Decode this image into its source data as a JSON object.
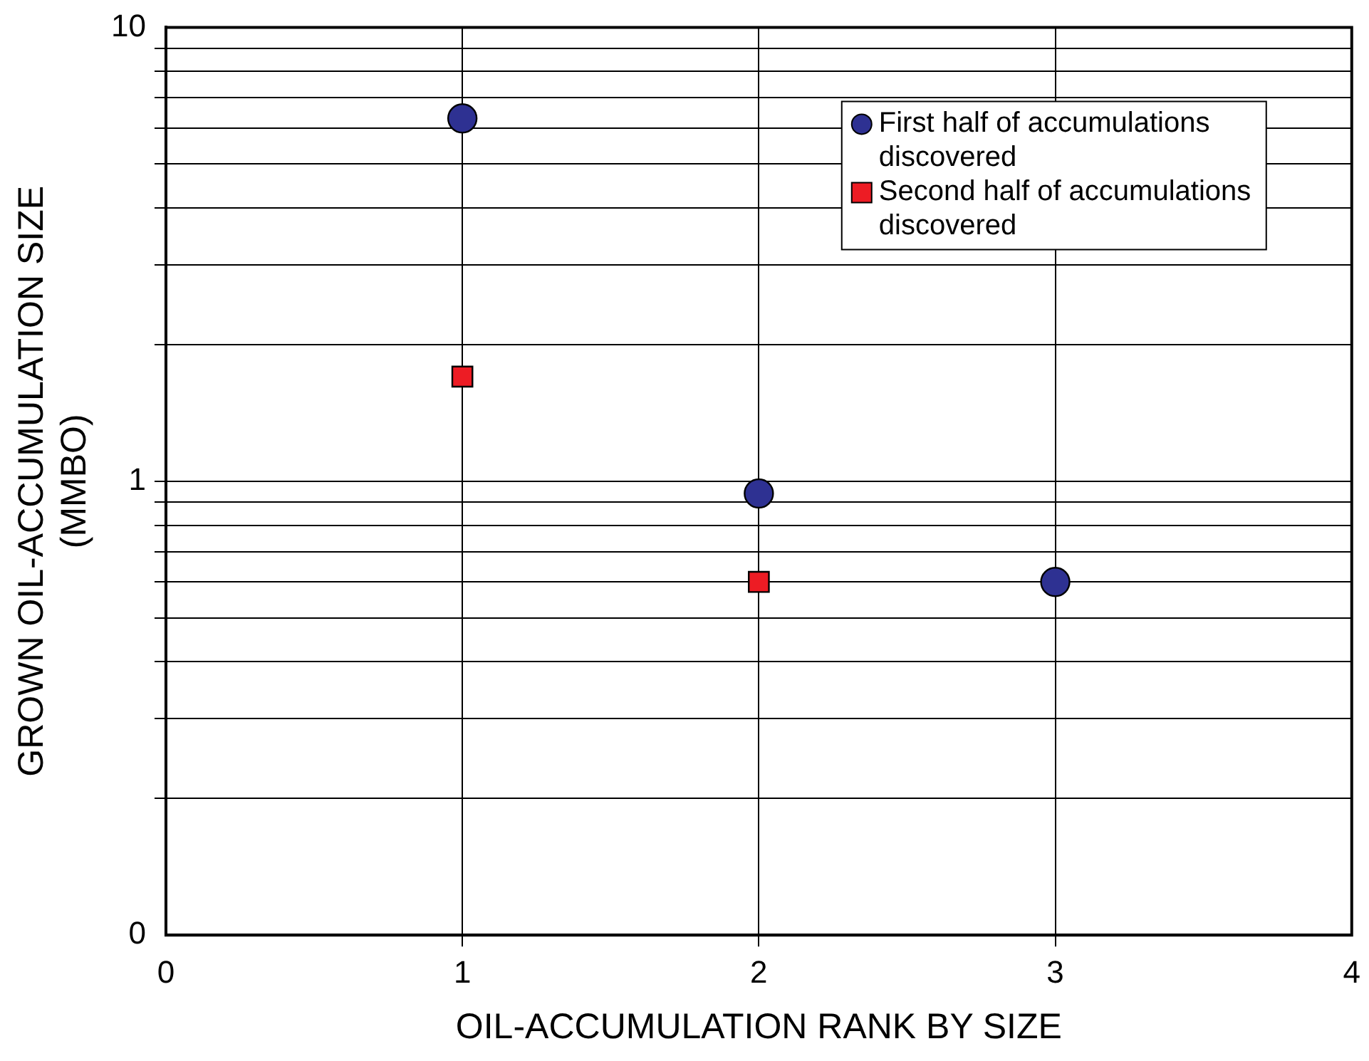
{
  "chart_data": {
    "type": "scatter",
    "xlabel": "OIL-ACCUMULATION RANK BY SIZE",
    "ylabel": "GROWN OIL-ACCUMULATION SIZE\n(MMBO)",
    "xlim": [
      0,
      4
    ],
    "xticks": [
      0,
      1,
      2,
      3,
      4
    ],
    "ylim": [
      0.1,
      10
    ],
    "yticks": [
      {
        "value": 0.1,
        "label": "0"
      },
      1,
      10
    ],
    "log": "y",
    "grid": true,
    "legend": "top right",
    "series": [
      {
        "name": "First half of accumulations discovered",
        "color": "#2e3192",
        "marker": "circle",
        "x": [
          1,
          2,
          3
        ],
        "values": [
          6.3,
          0.94,
          0.6
        ]
      },
      {
        "name": "Second half of accumulations discovered",
        "color": "#ed1c24",
        "marker": "square",
        "x": [
          1,
          2
        ],
        "values": [
          1.7,
          0.6
        ]
      }
    ]
  }
}
